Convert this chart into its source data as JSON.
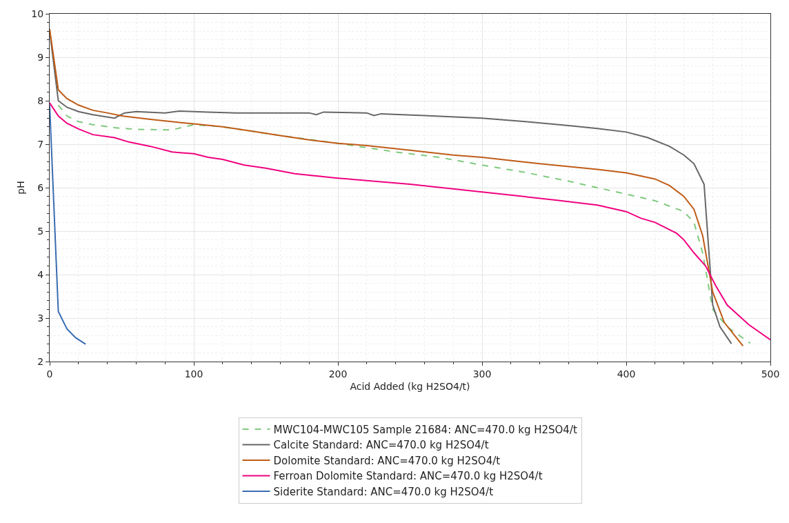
{
  "chart_data": {
    "type": "line",
    "xlabel": "Acid Added (kg H2SO4/t)",
    "ylabel": "pH",
    "xlim": [
      0,
      500
    ],
    "xticks": [
      0,
      100,
      200,
      300,
      400,
      500
    ],
    "ylim": [
      2,
      10
    ],
    "yticks": [
      2,
      3,
      4,
      5,
      6,
      7,
      8,
      9,
      10
    ],
    "grid": true,
    "legend": "bottom",
    "marker": "none",
    "series": [
      {
        "name": "MWC104-MWC105 Sample 21684: ANC=470.0 kg H2SO4/t",
        "color": "#7fc97f",
        "line_style": "dashed",
        "x": [
          6,
          12,
          20,
          30,
          45,
          60,
          85,
          100,
          120,
          160,
          200,
          240,
          270,
          300,
          330,
          360,
          380,
          400,
          420,
          440,
          447,
          453,
          460,
          470,
          486
        ],
        "values": [
          7.9,
          7.65,
          7.52,
          7.45,
          7.38,
          7.34,
          7.33,
          7.45,
          7.4,
          7.2,
          7.02,
          6.82,
          6.7,
          6.52,
          6.35,
          6.15,
          6.0,
          5.85,
          5.7,
          5.45,
          5.2,
          4.5,
          3.2,
          2.8,
          2.42
        ]
      },
      {
        "name": "Calcite Standard: ANC=470.0 kg H2SO4/t",
        "color": "#666666",
        "line_style": "solid",
        "x": [
          0,
          6,
          12,
          20,
          30,
          45,
          52,
          60,
          80,
          90,
          110,
          130,
          150,
          180,
          185,
          190,
          220,
          225,
          230,
          260,
          300,
          330,
          360,
          380,
          400,
          415,
          430,
          440,
          447,
          454,
          460,
          465,
          473
        ],
        "values": [
          9.6,
          8.0,
          7.85,
          7.75,
          7.68,
          7.6,
          7.72,
          7.75,
          7.72,
          7.76,
          7.74,
          7.72,
          7.72,
          7.72,
          7.68,
          7.74,
          7.72,
          7.66,
          7.7,
          7.66,
          7.6,
          7.52,
          7.43,
          7.36,
          7.28,
          7.15,
          6.95,
          6.75,
          6.55,
          6.08,
          3.3,
          2.8,
          2.41
        ]
      },
      {
        "name": "Dolomite Standard: ANC=470.0 kg H2SO4/t",
        "color": "#bf5b17",
        "line_style": "solid",
        "x": [
          0,
          6,
          12,
          20,
          30,
          40,
          50,
          70,
          90,
          100,
          120,
          140,
          160,
          180,
          200,
          220,
          250,
          280,
          300,
          340,
          380,
          400,
          420,
          430,
          440,
          447,
          453,
          460,
          468,
          481
        ],
        "values": [
          9.65,
          8.25,
          8.05,
          7.9,
          7.78,
          7.72,
          7.65,
          7.57,
          7.5,
          7.47,
          7.4,
          7.3,
          7.2,
          7.1,
          7.02,
          6.97,
          6.86,
          6.75,
          6.7,
          6.55,
          6.42,
          6.34,
          6.2,
          6.05,
          5.8,
          5.5,
          4.9,
          3.6,
          2.9,
          2.36
        ]
      },
      {
        "name": "Ferroan Dolomite Standard: ANC=470.0 kg H2SO4/t",
        "color": "#f0027f",
        "line_style": "solid",
        "x": [
          0,
          6,
          12,
          20,
          30,
          45,
          55,
          70,
          85,
          100,
          110,
          120,
          135,
          150,
          170,
          200,
          250,
          300,
          350,
          380,
          400,
          410,
          420,
          435,
          440,
          447,
          455,
          462,
          470,
          485,
          500
        ],
        "values": [
          7.95,
          7.65,
          7.48,
          7.35,
          7.22,
          7.15,
          7.05,
          6.95,
          6.82,
          6.78,
          6.7,
          6.65,
          6.52,
          6.45,
          6.32,
          6.22,
          6.08,
          5.9,
          5.72,
          5.6,
          5.45,
          5.3,
          5.2,
          4.95,
          4.8,
          4.5,
          4.2,
          3.75,
          3.3,
          2.85,
          2.5
        ]
      },
      {
        "name": "Siderite Standard: ANC=470.0 kg H2SO4/t",
        "color": "#386cb0",
        "line_style": "solid",
        "x": [
          0,
          6,
          12,
          18,
          25
        ],
        "values": [
          7.9,
          3.15,
          2.75,
          2.55,
          2.4
        ]
      }
    ]
  }
}
